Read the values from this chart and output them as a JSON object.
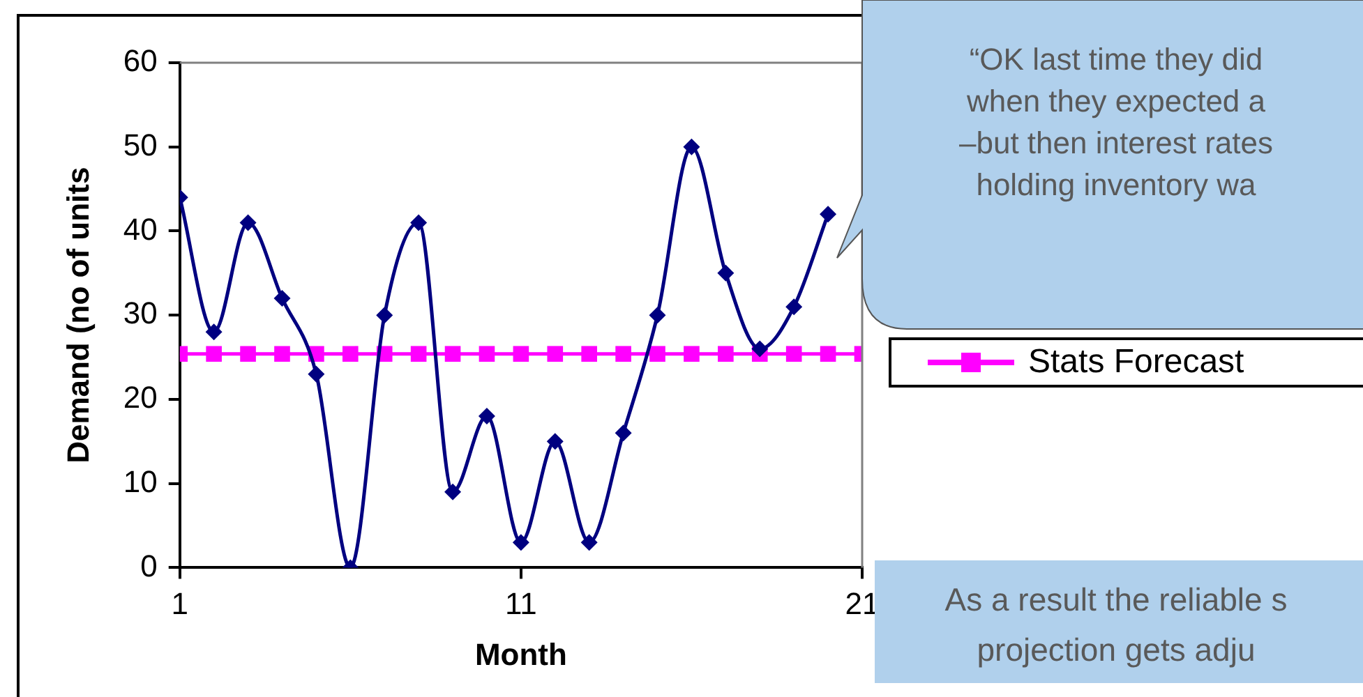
{
  "chart_data": {
    "type": "line",
    "xlabel": "Month",
    "ylabel": "Demand (no of units",
    "xlim": [
      1,
      21
    ],
    "xticks": [
      1,
      11,
      21
    ],
    "ylim": [
      0,
      60
    ],
    "yticks": [
      0,
      10,
      20,
      30,
      40,
      50,
      60
    ],
    "legend": "right",
    "grid": false,
    "series": [
      {
        "color": "#000080",
        "marker": "diamond",
        "x": [
          1,
          2,
          3,
          4,
          5,
          6,
          7,
          8,
          9,
          10,
          11,
          12,
          13,
          14,
          15,
          16,
          17,
          18,
          19,
          20
        ],
        "values": [
          44,
          28,
          41,
          32,
          23,
          0,
          30,
          41,
          9,
          18,
          3,
          15,
          3,
          16,
          30,
          50,
          35,
          26,
          31,
          42
        ]
      },
      {
        "name": "Stats Forecast",
        "color": "#ff00ff",
        "marker": "square",
        "x": [
          1,
          2,
          3,
          4,
          5,
          6,
          7,
          8,
          9,
          10,
          11,
          12,
          13,
          14,
          15,
          16,
          17,
          18,
          19,
          20,
          21
        ],
        "values": [
          25.4,
          25.4,
          25.4,
          25.4,
          25.4,
          25.4,
          25.4,
          25.4,
          25.4,
          25.4,
          25.4,
          25.4,
          25.4,
          25.4,
          25.4,
          25.4,
          25.4,
          25.4,
          25.4,
          25.4,
          25.4
        ]
      }
    ],
    "annotations": [
      "“OK last time they did\nwhen they expected a\n–but then interest rates\nholding inventory wa",
      "As a result the reliable s\nprojection gets adju"
    ]
  }
}
